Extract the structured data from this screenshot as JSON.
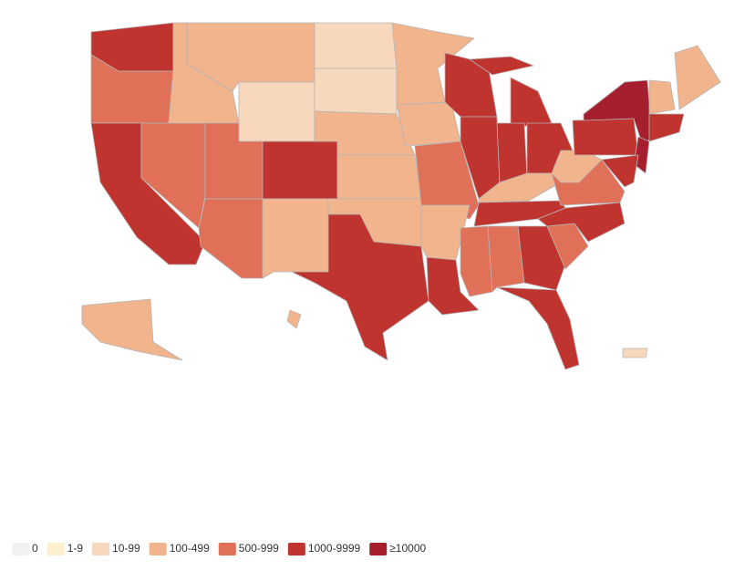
{
  "legend": {
    "items": [
      {
        "label": "0",
        "color": "#f2f2f2"
      },
      {
        "label": "1-9",
        "color": "#fdf0d0"
      },
      {
        "label": "10-99",
        "color": "#f8d8bc"
      },
      {
        "label": "100-499",
        "color": "#f1b48c"
      },
      {
        "label": "500-999",
        "color": "#e07058"
      },
      {
        "label": "1000-9999",
        "color": "#c0342f"
      },
      {
        "label": "≥10000",
        "color": "#a51f2e"
      }
    ]
  }
}
